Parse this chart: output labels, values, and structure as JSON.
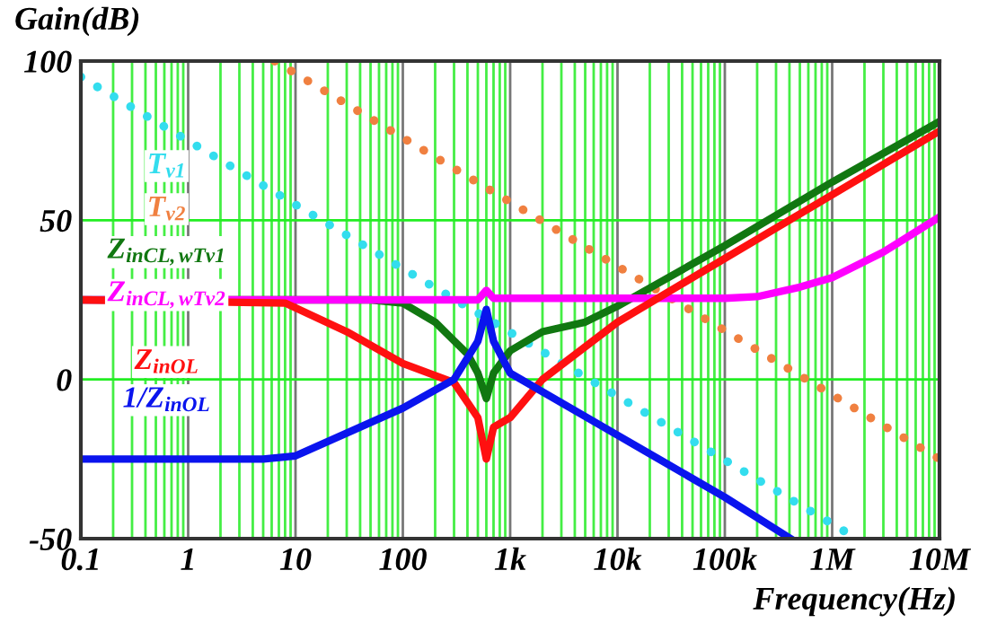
{
  "chart_data": {
    "type": "line",
    "xlabel": "Frequency(Hz)",
    "ylabel": "Gain(dB)",
    "log": "x",
    "grid": true,
    "xlim": [
      0.1,
      10000000
    ],
    "ylim": [
      -50,
      100
    ],
    "xticks": [
      0.1,
      1,
      10,
      100,
      {
        "value": 1000,
        "label": "1k"
      },
      {
        "value": 10000,
        "label": "10k"
      },
      {
        "value": 100000,
        "label": "100k"
      },
      {
        "value": 1000000,
        "label": "1M"
      },
      {
        "value": 10000000,
        "label": "10M"
      },
      {
        "value": 0.2,
        "label": null
      },
      {
        "value": 0.3,
        "label": null
      },
      {
        "value": 0.4,
        "label": null
      },
      {
        "value": 0.5,
        "label": null
      },
      {
        "value": 0.6,
        "label": null
      },
      {
        "value": 0.7,
        "label": null
      },
      {
        "value": 0.8,
        "label": null
      },
      {
        "value": 0.9,
        "label": null
      },
      {
        "value": 2,
        "label": null
      },
      {
        "value": 3,
        "label": null
      },
      {
        "value": 4,
        "label": null
      },
      {
        "value": 5,
        "label": null
      },
      {
        "value": 6,
        "label": null
      },
      {
        "value": 7,
        "label": null
      },
      {
        "value": 8,
        "label": null
      },
      {
        "value": 9,
        "label": null
      },
      {
        "value": 20,
        "label": null
      },
      {
        "value": 30,
        "label": null
      },
      {
        "value": 40,
        "label": null
      },
      {
        "value": 50,
        "label": null
      },
      {
        "value": 60,
        "label": null
      },
      {
        "value": 70,
        "label": null
      },
      {
        "value": 80,
        "label": null
      },
      {
        "value": 90,
        "label": null
      },
      {
        "value": 200,
        "label": null
      },
      {
        "value": 300,
        "label": null
      },
      {
        "value": 400,
        "label": null
      },
      {
        "value": 500,
        "label": null
      },
      {
        "value": 600,
        "label": null
      },
      {
        "value": 700,
        "label": null
      },
      {
        "value": 800,
        "label": null
      },
      {
        "value": 900,
        "label": null
      },
      {
        "value": 2000,
        "label": null
      },
      {
        "value": 3000,
        "label": null
      },
      {
        "value": 4000,
        "label": null
      },
      {
        "value": 5000,
        "label": null
      },
      {
        "value": 6000,
        "label": null
      },
      {
        "value": 7000,
        "label": null
      },
      {
        "value": 8000,
        "label": null
      },
      {
        "value": 9000,
        "label": null
      },
      {
        "value": 20000,
        "label": null
      },
      {
        "value": 30000,
        "label": null
      },
      {
        "value": 40000,
        "label": null
      },
      {
        "value": 50000,
        "label": null
      },
      {
        "value": 60000,
        "label": null
      },
      {
        "value": 70000,
        "label": null
      },
      {
        "value": 80000,
        "label": null
      },
      {
        "value": 90000,
        "label": null
      },
      {
        "value": 200000,
        "label": null
      },
      {
        "value": 300000,
        "label": null
      },
      {
        "value": 400000,
        "label": null
      },
      {
        "value": 500000,
        "label": null
      },
      {
        "value": 600000,
        "label": null
      },
      {
        "value": 700000,
        "label": null
      },
      {
        "value": 800000,
        "label": null
      },
      {
        "value": 900000,
        "label": null
      },
      {
        "value": 2000000,
        "label": null
      },
      {
        "value": 3000000,
        "label": null
      },
      {
        "value": 4000000,
        "label": null
      },
      {
        "value": 5000000,
        "label": null
      },
      {
        "value": 6000000,
        "label": null
      },
      {
        "value": 7000000,
        "label": null
      },
      {
        "value": 8000000,
        "label": null
      },
      {
        "value": 9000000,
        "label": null
      }
    ],
    "yticks": [
      -50,
      0,
      50,
      100
    ],
    "series": [
      {
        "name": "T$_{v1}$",
        "color": "#33ddee",
        "line_style": "dotted",
        "x": [
          0.1,
          1700000
        ],
        "values": [
          95,
          -50
        ]
      },
      {
        "name": "T$_{v2}$",
        "color": "#f08040",
        "line_style": "dotted",
        "x": [
          6.4,
          10000000
        ],
        "values": [
          100,
          -25
        ]
      },
      {
        "name": "Z$_{inCL,wTv1}$",
        "color": "#117711",
        "line_style": "solid",
        "x": [
          0.1,
          50,
          100,
          200,
          400,
          500,
          600,
          700,
          1000,
          2000,
          5000,
          10000,
          100000,
          1000000,
          10000000
        ],
        "values": [
          25,
          25,
          24,
          18,
          8,
          2,
          -6,
          2,
          9,
          15,
          18,
          23,
          42,
          62,
          81
        ]
      },
      {
        "name": "Z$_{inCL,wTv2}$",
        "color": "#ff00ff",
        "line_style": "solid",
        "x": [
          0.1,
          500,
          600,
          700,
          1000,
          10000,
          100000,
          200000,
          500000,
          1000000,
          3000000,
          10000000
        ],
        "values": [
          25,
          25,
          28,
          25.5,
          25.5,
          25.5,
          25.5,
          26,
          29,
          32,
          40,
          51
        ]
      },
      {
        "name": "Z$_{inOL}$",
        "color": "#ff1010",
        "line_style": "solid",
        "x": [
          0.1,
          8,
          30,
          100,
          300,
          500,
          600,
          700,
          1000,
          2000,
          10000,
          100000,
          1000000,
          10000000
        ],
        "values": [
          25,
          24,
          15,
          5,
          -1,
          -12,
          -25,
          -15,
          -12,
          0,
          18,
          38,
          58,
          78
        ]
      },
      {
        "name": "1/Z$_{inOL}$",
        "color": "#0a14ee",
        "line_style": "solid",
        "x": [
          0.1,
          5,
          10,
          100,
          300,
          500,
          600,
          700,
          1000,
          10000,
          100000,
          410000
        ],
        "values": [
          -25,
          -25,
          -24,
          -9,
          0,
          12,
          22,
          12,
          2,
          -17.5,
          -37,
          -50
        ]
      }
    ]
  }
}
